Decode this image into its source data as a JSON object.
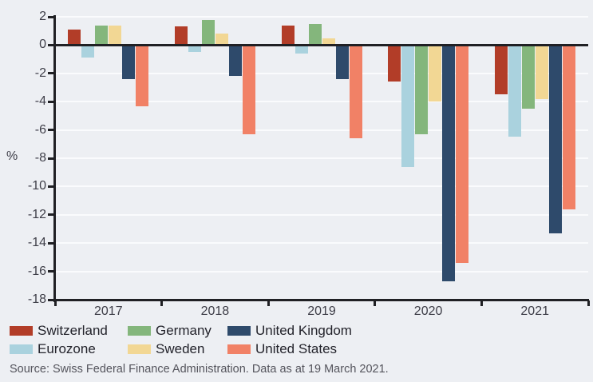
{
  "chart_data": {
    "type": "bar",
    "title": "",
    "xlabel": "",
    "ylabel": "%",
    "categories": [
      "2017",
      "2018",
      "2019",
      "2020",
      "2021"
    ],
    "series": [
      {
        "name": "Switzerland",
        "color": "#b23d28",
        "values": [
          1.1,
          1.3,
          1.4,
          -2.6,
          -3.5
        ]
      },
      {
        "name": "Eurozone",
        "color": "#aad2de",
        "values": [
          -0.9,
          -0.5,
          -0.6,
          -8.6,
          -6.5
        ]
      },
      {
        "name": "Germany",
        "color": "#84b67c",
        "values": [
          1.4,
          1.8,
          1.5,
          -6.3,
          -4.5
        ]
      },
      {
        "name": "Sweden",
        "color": "#f2d794",
        "values": [
          1.4,
          0.8,
          0.5,
          -4.0,
          -3.8
        ]
      },
      {
        "name": "United Kingdom",
        "color": "#2e4a6b",
        "values": [
          -2.4,
          -2.2,
          -2.4,
          -16.7,
          -13.3
        ]
      },
      {
        "name": "United States",
        "color": "#f18166",
        "values": [
          -4.3,
          -6.3,
          -6.6,
          -15.4,
          -11.6
        ]
      }
    ],
    "ylim": [
      -18,
      2
    ],
    "y_ticks": [
      2,
      0,
      -2,
      -4,
      -6,
      -8,
      -10,
      -12,
      -14,
      -16,
      -18
    ],
    "grid": true,
    "legend_position": "bottom",
    "legend_rows": [
      [
        "Switzerland",
        "Germany",
        "United Kingdom"
      ],
      [
        "Eurozone",
        "Sweden",
        "United States"
      ]
    ]
  },
  "source_note": "Source: Swiss Federal Finance Administration. Data as at 19 March 2021.",
  "colors": {
    "background": "#edeff3",
    "gridline": "#fafbfd",
    "axis": "#202024",
    "tick_label": "#3e3e48",
    "legend_text": "#23232b",
    "source_text": "#54545c"
  }
}
